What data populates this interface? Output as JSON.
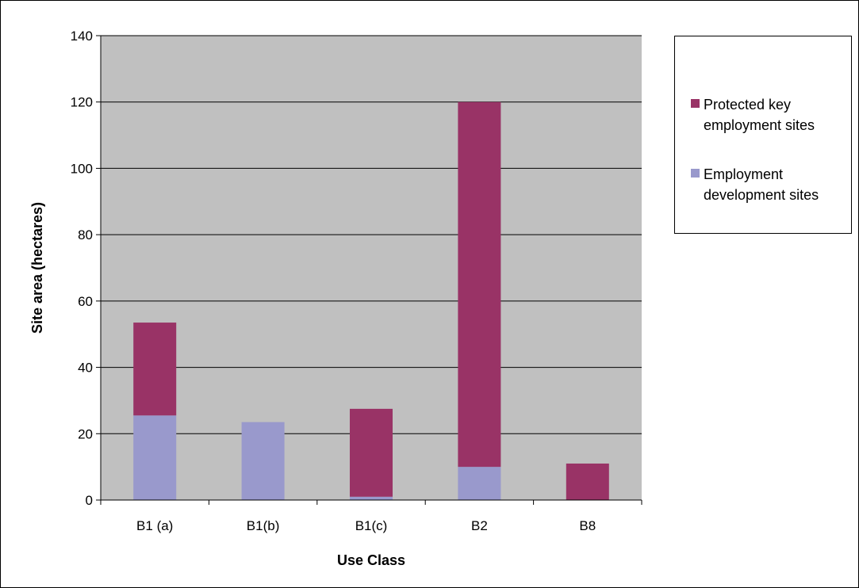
{
  "chart_data": {
    "type": "bar",
    "stacked": true,
    "title": "",
    "xlabel": "Use Class",
    "ylabel": "Site area (hectares)",
    "ylim": [
      0,
      140
    ],
    "yticks": [
      "0",
      "20",
      "40",
      "60",
      "80",
      "100",
      "120",
      "140"
    ],
    "categories": [
      "B1 (a)",
      "B1(b)",
      "B1(c)",
      "B2",
      "B8"
    ],
    "series": [
      {
        "name": "Employment development sites",
        "color": "#9999cc",
        "values": [
          25.5,
          23.5,
          1,
          10,
          0
        ]
      },
      {
        "name": "Protected key employment sites",
        "color": "#993366",
        "values": [
          28,
          0,
          26.5,
          110,
          11
        ]
      }
    ],
    "grid": true,
    "plot_background": "#c0c0c0",
    "gridline_color": "#000000",
    "legend_position": "right",
    "legend": [
      {
        "label": "Protected key employment sites",
        "color": "#993366"
      },
      {
        "label": "Employment development sites",
        "color": "#9999cc"
      }
    ]
  }
}
